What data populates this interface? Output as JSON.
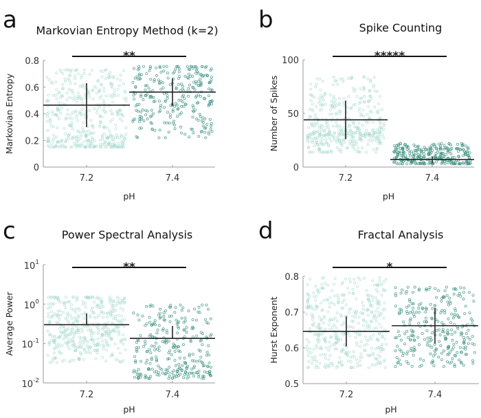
{
  "figure": {
    "colors": {
      "group1": "#8fd0bf",
      "group2": "#2f8a78",
      "summary": "#222222",
      "axis": "#9a9a9a"
    }
  },
  "chart_data": [
    {
      "panel": "a",
      "type": "scatter",
      "title": "Markovian Entropy Method (k=2)",
      "xlabel": "pH",
      "ylabel": "Markovian Entropy",
      "categories": [
        "7.2",
        "7.4"
      ],
      "yscale": "linear",
      "ylim": [
        0,
        0.8
      ],
      "yticks": [
        0,
        0.2,
        0.4,
        0.6,
        0.8
      ],
      "ytick_labels": [
        "0",
        "0.2",
        "0.4",
        "0.6",
        "0.8"
      ],
      "significance": "**",
      "series": [
        {
          "name": "7.2",
          "mean": 0.465,
          "sd_low": 0.3,
          "sd_high": 0.63,
          "min": 0.15,
          "max": 0.73,
          "n": 420,
          "cluster_low": 0.18
        },
        {
          "name": "7.4",
          "mean": 0.563,
          "sd_low": 0.46,
          "sd_high": 0.665,
          "min": 0.22,
          "max": 0.755,
          "n": 280,
          "cluster_low": null
        }
      ]
    },
    {
      "panel": "b",
      "type": "scatter",
      "title": "Spike Counting",
      "xlabel": "pH",
      "ylabel": "Number of Spikes",
      "categories": [
        "7.2",
        "7.4"
      ],
      "yscale": "linear",
      "ylim": [
        0,
        100
      ],
      "yticks": [
        0,
        50,
        100
      ],
      "ytick_labels": [
        "0",
        "50",
        "100"
      ],
      "significance": "*****",
      "series": [
        {
          "name": "7.2",
          "mean": 44,
          "sd_low": 26,
          "sd_high": 62,
          "min": 14,
          "max": 84,
          "n": 420,
          "cluster_low": 29
        },
        {
          "name": "7.4",
          "mean": 7,
          "sd_low": 4,
          "sd_high": 10,
          "min": 3,
          "max": 22,
          "n": 280,
          "cluster_low": null
        }
      ]
    },
    {
      "panel": "c",
      "type": "scatter",
      "title": "Power Spectral Analysis",
      "xlabel": "pH",
      "ylabel": "Average Power",
      "categories": [
        "7.2",
        "7.4"
      ],
      "yscale": "log",
      "ylim": [
        0.01,
        10
      ],
      "yticks": [
        0.01,
        0.1,
        1,
        10
      ],
      "ytick_labels": [
        [
          "10",
          "-2"
        ],
        [
          "10",
          "-1"
        ],
        [
          "10",
          "0"
        ],
        [
          "10",
          "1"
        ]
      ],
      "significance": "**",
      "series": [
        {
          "name": "7.2",
          "mean": 0.3,
          "sd_low": 0.3,
          "sd_high": 0.58,
          "min": 0.033,
          "max": 1.5,
          "n": 420,
          "cluster_low": null
        },
        {
          "name": "7.4",
          "mean": 0.135,
          "sd_low": 0.135,
          "sd_high": 0.28,
          "min": 0.013,
          "max": 0.95,
          "n": 280,
          "cluster_low": 0.018
        }
      ]
    },
    {
      "panel": "d",
      "type": "scatter",
      "title": "Fractal Analysis",
      "xlabel": "pH",
      "ylabel": "Hurst Exponent",
      "categories": [
        "7.2",
        "7.4"
      ],
      "yscale": "linear",
      "ylim": [
        0.5,
        0.8
      ],
      "yticks": [
        0.5,
        0.6,
        0.7,
        0.8
      ],
      "ytick_labels": [
        "0.5",
        "0.6",
        "0.7",
        "0.8"
      ],
      "significance": "*",
      "series": [
        {
          "name": "7.2",
          "mean": 0.646,
          "sd_low": 0.604,
          "sd_high": 0.688,
          "min": 0.545,
          "max": 0.797,
          "n": 420,
          "cluster_low": null
        },
        {
          "name": "7.4",
          "mean": 0.662,
          "sd_low": 0.612,
          "sd_high": 0.712,
          "min": 0.548,
          "max": 0.77,
          "n": 280,
          "cluster_low": null
        }
      ]
    }
  ]
}
